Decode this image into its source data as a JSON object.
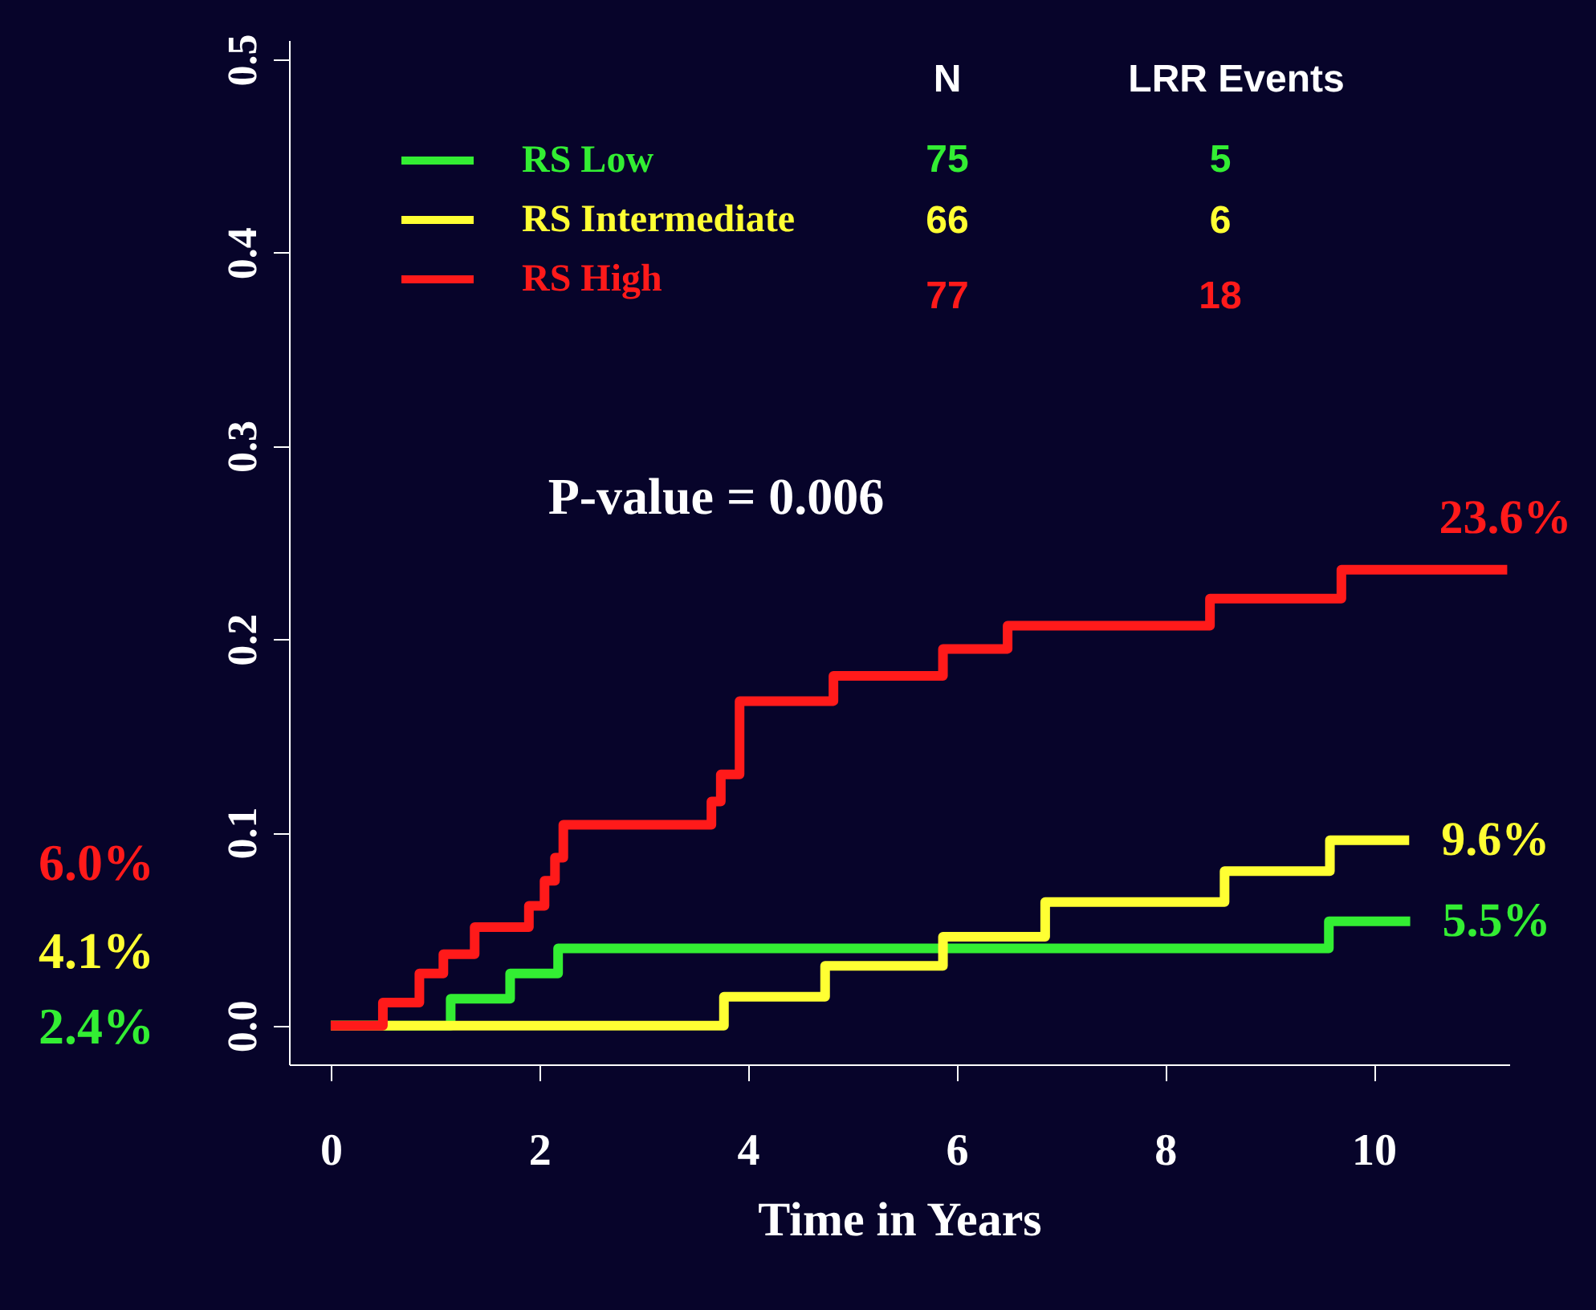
{
  "chart_data": {
    "type": "step",
    "xlabel": "Time in Years",
    "series": [
      {
        "name": "RS Low",
        "color": "#33ee33",
        "x": [
          0,
          1.15,
          1.72,
          2.18,
          9.57,
          10.35
        ],
        "values": [
          0,
          0.014,
          0.027,
          0.04,
          0.054,
          0.054
        ]
      },
      {
        "name": "RS Intermediate",
        "color": "#ffff33",
        "x": [
          0,
          3.77,
          4.74,
          5.87,
          6.85,
          8.57,
          9.58,
          10.34
        ],
        "values": [
          0,
          0.015,
          0.031,
          0.046,
          0.064,
          0.08,
          0.096,
          0.096
        ]
      },
      {
        "name": "RS High",
        "color": "#ff1a1a",
        "x": [
          0,
          0.5,
          0.85,
          1.08,
          1.38,
          1.9,
          2.05,
          2.15,
          2.23,
          3.65,
          3.74,
          3.92,
          4.82,
          5.87,
          6.49,
          8.43,
          9.69,
          11.28
        ],
        "values": [
          0,
          0.012,
          0.027,
          0.037,
          0.051,
          0.062,
          0.075,
          0.087,
          0.104,
          0.116,
          0.13,
          0.168,
          0.181,
          0.195,
          0.207,
          0.221,
          0.236,
          0.236
        ]
      }
    ],
    "xlim": [
      -0.4,
      11.3
    ],
    "xticks": [
      0,
      2,
      4,
      6,
      8,
      10
    ],
    "ylim": [
      -0.02,
      0.51
    ],
    "yticks": [
      {
        "value": 0,
        "label": "0.0"
      },
      {
        "value": 0.1,
        "label": "0.1"
      },
      {
        "value": 0.2,
        "label": "0.2"
      },
      {
        "value": 0.3,
        "label": "0.3"
      },
      {
        "value": 0.4,
        "label": "0.4"
      },
      {
        "value": 0.5,
        "label": "0.5"
      }
    ],
    "legend": "top left",
    "grid": false,
    "marker": "none",
    "line_style": "solid",
    "annotations": [
      "N",
      "LRR Events",
      "75",
      "5",
      "66",
      "6",
      "77",
      "18",
      "P-value = 0.006",
      {
        "text": "23.6%",
        "x": 11.28,
        "y": 0.236
      },
      {
        "text": "9.6%",
        "x": 10.34,
        "y": 0.096
      },
      {
        "text": "5.5%",
        "x": 10.35,
        "y": 0.054
      },
      "6.0%",
      "4.1%",
      "2.4%"
    ]
  }
}
